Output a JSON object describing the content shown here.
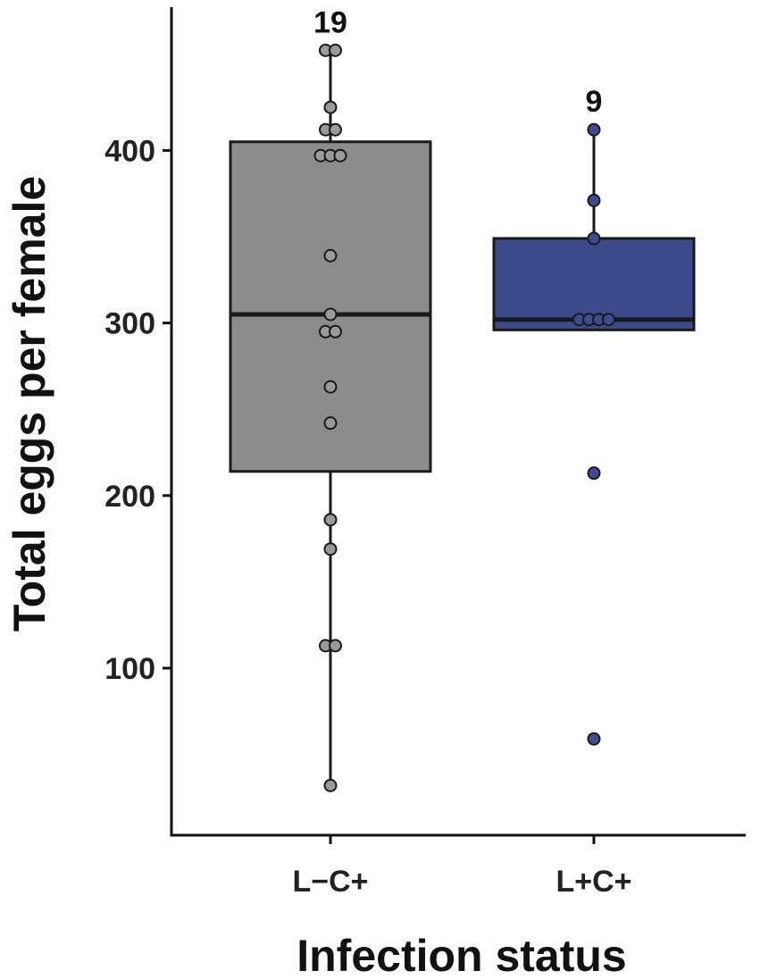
{
  "chart_data": {
    "type": "box",
    "xlabel": "Infection status",
    "ylabel": "Total eggs per female",
    "y_ticks": [
      100,
      200,
      300,
      400
    ],
    "ylim": [
      0,
      475
    ],
    "grid": false,
    "legend": "none",
    "groups": [
      {
        "category": "L−C+",
        "n_label": "19",
        "color": "#8c8c8c",
        "point_color": "#9a9a9a",
        "box": {
          "whisker_low": 32,
          "q1": 214,
          "median": 305,
          "q3": 405,
          "whisker_high": 458
        },
        "points": [
          458,
          458,
          425,
          412,
          412,
          397,
          397,
          397,
          339,
          305,
          295,
          295,
          263,
          242,
          186,
          169,
          113,
          113,
          32
        ]
      },
      {
        "category": "L+C+",
        "n_label": "9",
        "color": "#3b4a8a",
        "point_color": "#3d4c90",
        "box": {
          "whisker_low": 296,
          "q1": 296,
          "median": 302,
          "q3": 349,
          "whisker_high": 412
        },
        "points": [
          412,
          371,
          349,
          302,
          302,
          302,
          302,
          213,
          59
        ]
      }
    ]
  }
}
